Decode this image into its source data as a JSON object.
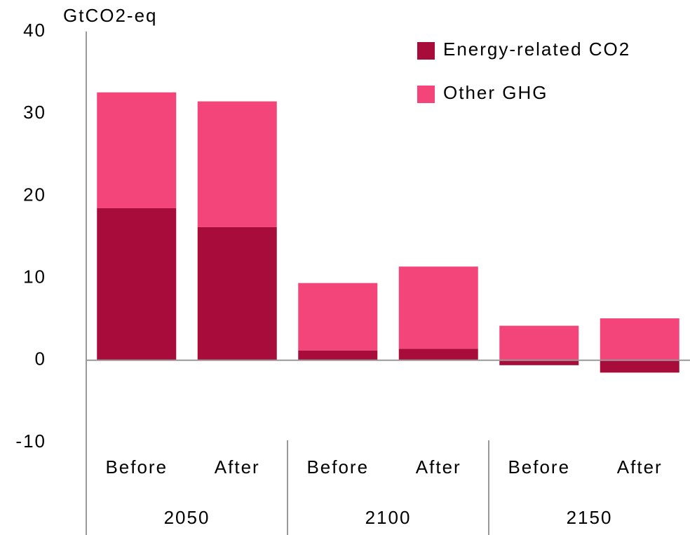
{
  "chart_data": {
    "type": "stacked_bar",
    "y_axis_label": "GtCO2-eq",
    "categories": [
      "Before",
      "After",
      "Before",
      "After",
      "Before",
      "After"
    ],
    "groups": [
      "2050",
      "2100",
      "2150"
    ],
    "series": [
      {
        "name": "Energy-related CO2",
        "color": "#a80c3a",
        "values": [
          18.5,
          16.2,
          1.2,
          1.4,
          -0.6,
          -1.5
        ]
      },
      {
        "name": "Other GHG",
        "color": "#f4457a",
        "values": [
          14.1,
          15.3,
          8.2,
          10.0,
          4.2,
          5.1
        ]
      }
    ],
    "ylim": [
      -10,
      40
    ],
    "yticks": [
      -10,
      0,
      10,
      20,
      30,
      40
    ],
    "grid": false,
    "legend": "top-right"
  }
}
